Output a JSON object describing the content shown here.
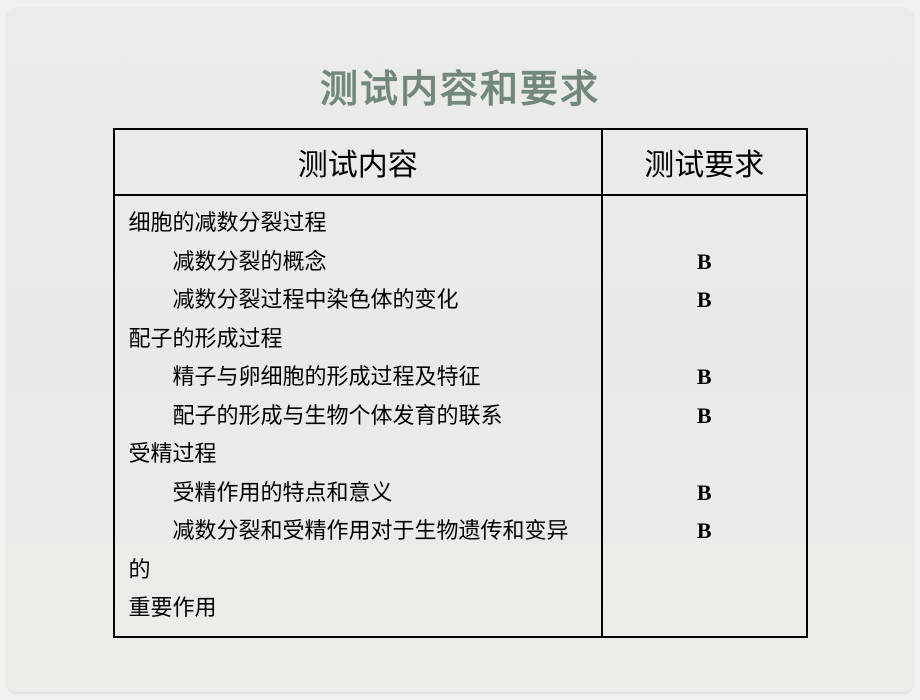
{
  "title": "测试内容和要求",
  "table": {
    "headers": {
      "content": "测试内容",
      "requirement": "测试要求"
    },
    "sections": [
      {
        "header": "细胞的减数分裂过程",
        "items": [
          {
            "text": "减数分裂的概念",
            "req": "B"
          },
          {
            "text": "减数分裂过程中染色体的变化",
            "req": "B"
          }
        ]
      },
      {
        "header": "配子的形成过程",
        "items": [
          {
            "text": "精子与卵细胞的形成过程及特征",
            "req": "B"
          },
          {
            "text": "配子的形成与生物个体发育的联系",
            "req": "B"
          }
        ]
      },
      {
        "header": "受精过程",
        "items": [
          {
            "text": "受精作用的特点和意义",
            "req": "B"
          },
          {
            "text": "减数分裂和受精作用对于生物遗传和变异的重要作用",
            "req": "B"
          }
        ]
      }
    ],
    "last_line": "重要作用"
  },
  "colors": {
    "background": "#e9eae7",
    "title_color": "#71887b",
    "border_color": "#000000",
    "text_color": "#000000"
  }
}
